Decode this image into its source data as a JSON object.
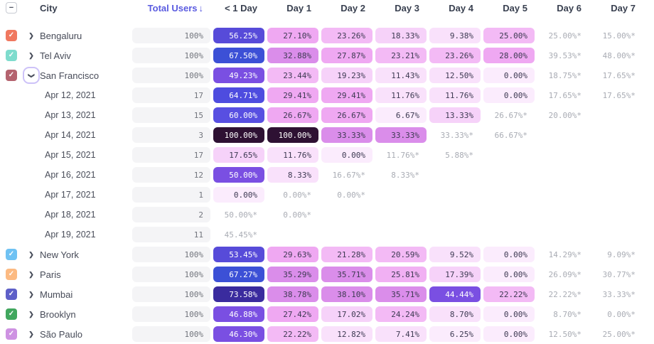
{
  "colors": {
    "sorted_header": "#5A5BE0",
    "header_text": "#394050",
    "total_pill_bg": "#F4F4F6",
    "total_text": "#71747C",
    "estimated_text": "#A9ACB4",
    "pill_dark_text": "#3D3A52",
    "focus_ring": "#CDC2F8"
  },
  "header": {
    "select_all_glyph": "−",
    "select_all_state": "indeterminate",
    "columns": [
      "City",
      "Total Users",
      "< 1 Day",
      "Day 1",
      "Day 2",
      "Day 3",
      "Day 4",
      "Day 5",
      "Day 6",
      "Day 7"
    ],
    "sort_column": "Total Users",
    "sort_arrow": "↓"
  },
  "rows": [
    {
      "type": "city",
      "label": "Bengaluru",
      "checkbox_color": "#F0785F",
      "checked": true,
      "expanded": false,
      "total": "100%",
      "cells": [
        {
          "t": "56.25%",
          "bg": "#574BD9",
          "fg": "#FFFFFF"
        },
        {
          "t": "27.10%",
          "bg": "#EFA8F2"
        },
        {
          "t": "23.26%",
          "bg": "#F3BAF5"
        },
        {
          "t": "18.33%",
          "bg": "#F6D2F9"
        },
        {
          "t": "9.38%",
          "bg": "#F9E1FB"
        },
        {
          "t": "25.00%",
          "bg": "#F3BAF5"
        },
        {
          "t": "25.00%*",
          "est": true
        },
        {
          "t": "15.00%*",
          "est": true
        }
      ]
    },
    {
      "type": "city",
      "label": "Tel Aviv",
      "checkbox_color": "#7EDCCD",
      "checked": true,
      "expanded": false,
      "total": "100%",
      "cells": [
        {
          "t": "67.50%",
          "bg": "#3C50D6",
          "fg": "#FFFFFF"
        },
        {
          "t": "32.88%",
          "bg": "#DA8DEA"
        },
        {
          "t": "27.87%",
          "bg": "#EFA8F2"
        },
        {
          "t": "23.21%",
          "bg": "#F3BAF5"
        },
        {
          "t": "23.26%",
          "bg": "#F3BAF5"
        },
        {
          "t": "28.00%",
          "bg": "#EFA8F2"
        },
        {
          "t": "39.53%*",
          "est": true
        },
        {
          "t": "48.00%*",
          "est": true
        }
      ]
    },
    {
      "type": "city",
      "label": "San Francisco",
      "checkbox_color": "#B4636F",
      "checked": true,
      "expanded": true,
      "focused": true,
      "total": "100%",
      "cells": [
        {
          "t": "49.23%",
          "bg": "#7A4FE2",
          "fg": "#FFFFFF"
        },
        {
          "t": "23.44%",
          "bg": "#F3BAF5"
        },
        {
          "t": "19.23%",
          "bg": "#F6D2F9"
        },
        {
          "t": "11.43%",
          "bg": "#F9E1FB"
        },
        {
          "t": "12.50%",
          "bg": "#F9E1FB"
        },
        {
          "t": "0.00%",
          "bg": "#FBECFD"
        },
        {
          "t": "18.75%*",
          "est": true
        },
        {
          "t": "17.65%*",
          "est": true
        }
      ]
    },
    {
      "type": "date",
      "label": "Apr 12, 2021",
      "total": "17",
      "cells": [
        {
          "t": "64.71%",
          "bg": "#4E4CDF",
          "fg": "#FFFFFF"
        },
        {
          "t": "29.41%",
          "bg": "#EFA8F2"
        },
        {
          "t": "29.41%",
          "bg": "#EFA8F2"
        },
        {
          "t": "11.76%",
          "bg": "#F9E1FB"
        },
        {
          "t": "11.76%",
          "bg": "#F9E1FB"
        },
        {
          "t": "0.00%",
          "bg": "#FBECFD"
        },
        {
          "t": "17.65%*",
          "est": true
        },
        {
          "t": "17.65%*",
          "est": true
        }
      ]
    },
    {
      "type": "date",
      "label": "Apr 13, 2021",
      "total": "15",
      "cells": [
        {
          "t": "60.00%",
          "bg": "#584FE1",
          "fg": "#FFFFFF"
        },
        {
          "t": "26.67%",
          "bg": "#EFA8F2"
        },
        {
          "t": "26.67%",
          "bg": "#EFA8F2"
        },
        {
          "t": "6.67%",
          "bg": "#FBECFD"
        },
        {
          "t": "13.33%",
          "bg": "#F6D2F9"
        },
        {
          "t": "26.67%*",
          "est": true
        },
        {
          "t": "20.00%*",
          "est": true
        },
        null
      ]
    },
    {
      "type": "date",
      "label": "Apr 14, 2021",
      "total": "3",
      "cells": [
        {
          "t": "100.00%",
          "bg": "#2E1133",
          "fg": "#FFFFFF"
        },
        {
          "t": "100.00%",
          "bg": "#2E1133",
          "fg": "#FFFFFF"
        },
        {
          "t": "33.33%",
          "bg": "#DA8DEA"
        },
        {
          "t": "33.33%",
          "bg": "#DA8DEA"
        },
        {
          "t": "33.33%*",
          "est": true
        },
        {
          "t": "66.67%*",
          "est": true
        },
        null,
        null
      ]
    },
    {
      "type": "date",
      "label": "Apr 15, 2021",
      "total": "17",
      "cells": [
        {
          "t": "17.65%",
          "bg": "#F6D2F9"
        },
        {
          "t": "11.76%",
          "bg": "#F9E1FB"
        },
        {
          "t": "0.00%",
          "bg": "#FBECFD"
        },
        {
          "t": "11.76%*",
          "est": true
        },
        {
          "t": "5.88%*",
          "est": true
        },
        null,
        null,
        null
      ]
    },
    {
      "type": "date",
      "label": "Apr 16, 2021",
      "total": "12",
      "cells": [
        {
          "t": "50.00%",
          "bg": "#7A4FE2",
          "fg": "#FFFFFF"
        },
        {
          "t": "8.33%",
          "bg": "#F9E1FB"
        },
        {
          "t": "16.67%*",
          "est": true
        },
        {
          "t": "8.33%*",
          "est": true
        },
        null,
        null,
        null,
        null
      ]
    },
    {
      "type": "date",
      "label": "Apr 17, 2021",
      "total": "1",
      "cells": [
        {
          "t": "0.00%",
          "bg": "#FBECFD"
        },
        {
          "t": "0.00%*",
          "est": true
        },
        {
          "t": "0.00%*",
          "est": true
        },
        null,
        null,
        null,
        null,
        null
      ]
    },
    {
      "type": "date",
      "label": "Apr 18, 2021",
      "total": "2",
      "cells": [
        {
          "t": "50.00%*",
          "est": true
        },
        {
          "t": "0.00%*",
          "est": true
        },
        null,
        null,
        null,
        null,
        null,
        null
      ]
    },
    {
      "type": "date",
      "label": "Apr 19, 2021",
      "total": "11",
      "cells": [
        {
          "t": "45.45%*",
          "est": true
        },
        null,
        null,
        null,
        null,
        null,
        null,
        null
      ]
    },
    {
      "type": "city",
      "label": "New York",
      "checkbox_color": "#6FC2F3",
      "checked": true,
      "expanded": false,
      "total": "100%",
      "cells": [
        {
          "t": "53.45%",
          "bg": "#574BD9",
          "fg": "#FFFFFF"
        },
        {
          "t": "29.63%",
          "bg": "#EFA8F2"
        },
        {
          "t": "21.28%",
          "bg": "#F3BAF5"
        },
        {
          "t": "20.59%",
          "bg": "#F3BAF5"
        },
        {
          "t": "9.52%",
          "bg": "#F9E1FB"
        },
        {
          "t": "0.00%",
          "bg": "#FBECFD"
        },
        {
          "t": "14.29%*",
          "est": true
        },
        {
          "t": "9.09%*",
          "est": true
        }
      ]
    },
    {
      "type": "city",
      "label": "Paris",
      "checkbox_color": "#FCBA82",
      "checked": true,
      "expanded": false,
      "total": "100%",
      "cells": [
        {
          "t": "67.27%",
          "bg": "#3C50D6",
          "fg": "#FFFFFF"
        },
        {
          "t": "35.29%",
          "bg": "#DA8DEA"
        },
        {
          "t": "35.71%",
          "bg": "#DA8DEA"
        },
        {
          "t": "25.81%",
          "bg": "#F1B0F3"
        },
        {
          "t": "17.39%",
          "bg": "#F6D2F9"
        },
        {
          "t": "0.00%",
          "bg": "#FBECFD"
        },
        {
          "t": "26.09%*",
          "est": true
        },
        {
          "t": "30.77%*",
          "est": true
        }
      ]
    },
    {
      "type": "city",
      "label": "Mumbai",
      "checkbox_color": "#5E60C8",
      "checked": true,
      "expanded": false,
      "total": "100%",
      "cells": [
        {
          "t": "73.58%",
          "bg": "#3A2B9E",
          "fg": "#FFFFFF"
        },
        {
          "t": "38.78%",
          "bg": "#DA8DEA"
        },
        {
          "t": "38.10%",
          "bg": "#DA8DEA"
        },
        {
          "t": "35.71%",
          "bg": "#DA8DEA"
        },
        {
          "t": "44.44%",
          "bg": "#7A4FE2",
          "fg": "#FFFFFF"
        },
        {
          "t": "22.22%",
          "bg": "#F3BAF5"
        },
        {
          "t": "22.22%*",
          "est": true
        },
        {
          "t": "33.33%*",
          "est": true
        }
      ]
    },
    {
      "type": "city",
      "label": "Brooklyn",
      "checkbox_color": "#41A75E",
      "checked": true,
      "expanded": false,
      "total": "100%",
      "cells": [
        {
          "t": "46.88%",
          "bg": "#7A4FE2",
          "fg": "#FFFFFF"
        },
        {
          "t": "27.42%",
          "bg": "#EFA8F2"
        },
        {
          "t": "17.02%",
          "bg": "#F6D2F9"
        },
        {
          "t": "24.24%",
          "bg": "#F3BAF5"
        },
        {
          "t": "8.70%",
          "bg": "#F9E1FB"
        },
        {
          "t": "0.00%",
          "bg": "#FBECFD"
        },
        {
          "t": "8.70%*",
          "est": true
        },
        {
          "t": "0.00%*",
          "est": true
        }
      ]
    },
    {
      "type": "city",
      "label": "São Paulo",
      "checkbox_color": "#CE92E2",
      "checked": true,
      "expanded": false,
      "total": "100%",
      "cells": [
        {
          "t": "46.30%",
          "bg": "#7A4FE2",
          "fg": "#FFFFFF"
        },
        {
          "t": "22.22%",
          "bg": "#F3BAF5"
        },
        {
          "t": "12.82%",
          "bg": "#F9E1FB"
        },
        {
          "t": "7.41%",
          "bg": "#F9E1FB"
        },
        {
          "t": "6.25%",
          "bg": "#FBECFD"
        },
        {
          "t": "0.00%",
          "bg": "#FBECFD"
        },
        {
          "t": "12.50%*",
          "est": true
        },
        {
          "t": "25.00%*",
          "est": true
        }
      ]
    }
  ]
}
